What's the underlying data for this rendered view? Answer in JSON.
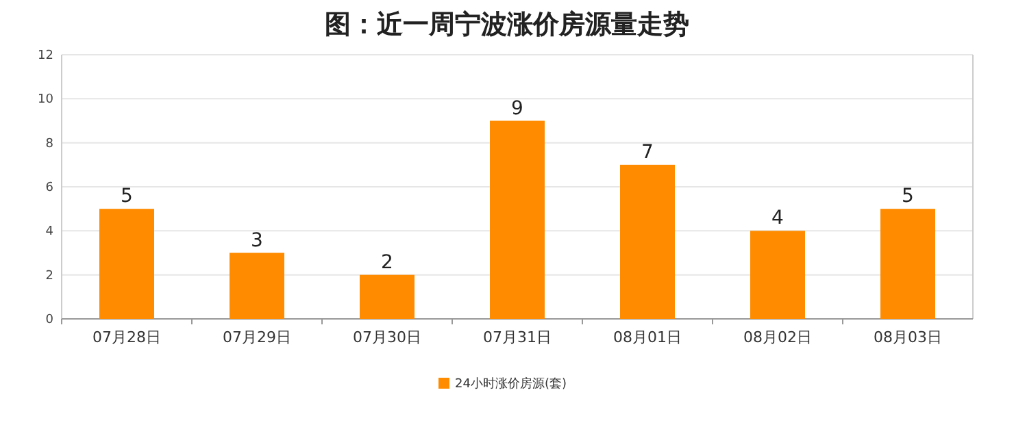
{
  "chart_data": {
    "type": "bar",
    "title": "图：近一周宁波涨价房源量走势",
    "categories": [
      "07月28日",
      "07月29日",
      "07月30日",
      "07月31日",
      "08月01日",
      "08月02日",
      "08月03日"
    ],
    "series": [
      {
        "name": "24小时涨价房源(套)",
        "color": "#ff8c00",
        "values": [
          5,
          3,
          2,
          9,
          7,
          4,
          5
        ]
      }
    ],
    "ylim": [
      0,
      12
    ],
    "yticks": [
      0,
      2,
      4,
      6,
      8,
      10,
      12
    ],
    "grid": "y",
    "legend": "bottom",
    "data_labels": true
  }
}
